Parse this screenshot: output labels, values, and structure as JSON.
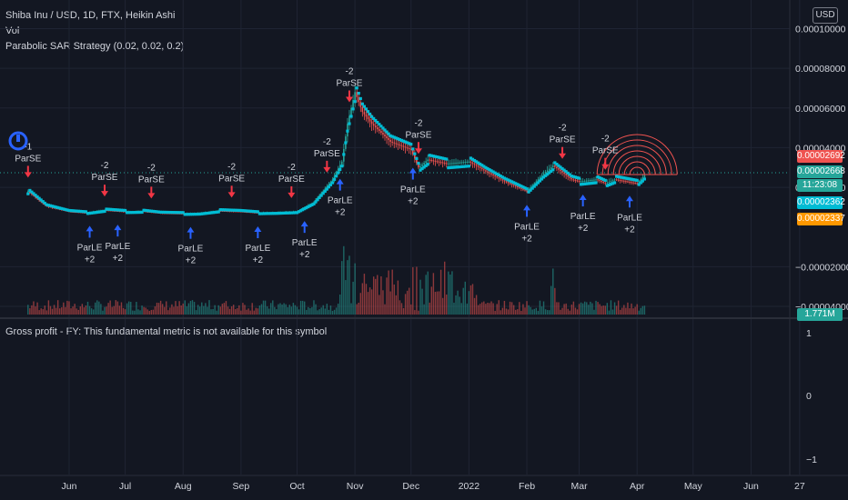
{
  "legend": {
    "symbol": "Shiba Inu / USD, 1D, FTX, Heikin Ashi",
    "volume": "Vol",
    "strategy": "Parabolic SAR Strategy (0.02, 0.02, 0.2)",
    "lower_pane": "Gross profit - FY: This fundamental metric is not available for this symbol"
  },
  "currency_button": "USD",
  "price_tags": {
    "red": "0.00002692",
    "green": "0.00002668",
    "countdown": "11:23:08",
    "teal": "0.00002362",
    "orange": "0.00002337",
    "volume": "1.771M"
  },
  "colors": {
    "background": "#131722",
    "bull": "#26a69a",
    "bear": "#ef5350",
    "sar": "#00bcd4",
    "buy_arrow": "#2962ff",
    "sell_arrow": "#f23645",
    "fib_circles": "#ef5350",
    "tag_orange": "#ff9800"
  },
  "chart_data": [
    {
      "type": "line",
      "pane": "price",
      "series": [
        {
          "name": "Shiba Inu / USD",
          "x": [
            "2021-05-10",
            "2021-05-20",
            "2021-06-01",
            "2021-06-10",
            "2021-06-20",
            "2021-07-01",
            "2021-07-10",
            "2021-07-20",
            "2021-08-01",
            "2021-08-10",
            "2021-08-20",
            "2021-09-01",
            "2021-09-10",
            "2021-09-20",
            "2021-10-01",
            "2021-10-10",
            "2021-10-20",
            "2021-10-25",
            "2021-10-28",
            "2021-11-01",
            "2021-11-05",
            "2021-11-10",
            "2021-11-20",
            "2021-12-01",
            "2021-12-05",
            "2021-12-10",
            "2021-12-20",
            "2022-01-01",
            "2022-01-10",
            "2022-01-20",
            "2022-02-01",
            "2022-02-10",
            "2022-02-15",
            "2022-02-25",
            "2022-03-01",
            "2022-03-10",
            "2022-03-15",
            "2022-03-20",
            "2022-04-01",
            "2022-04-05"
          ],
          "values": [
            1.8e-05,
            1.05e-05,
            7.8e-06,
            7.2e-06,
            8.5e-06,
            7.8e-06,
            8e-06,
            7e-06,
            6.8e-06,
            7e-06,
            8.2e-06,
            7.8e-06,
            7.2e-06,
            7.4e-06,
            7.8e-06,
            1.25e-05,
            2.4e-05,
            3.3e-05,
            5.2e-05,
            6.8e-05,
            5.8e-05,
            5.2e-05,
            4.3e-05,
            3.9e-05,
            3e-05,
            3.4e-05,
            3.2e-05,
            3.3e-05,
            2.8e-05,
            2.3e-05,
            1.8e-05,
            2.7e-05,
            3.1e-05,
            2.4e-05,
            2.3e-05,
            2.4e-05,
            2.2e-05,
            2.4e-05,
            2.2e-05,
            2.6e-05
          ]
        }
      ],
      "signals": [
        {
          "label": "ParSE",
          "count": "-1",
          "side": "sell",
          "x": "2021-05-10"
        },
        {
          "label": "ParLE",
          "count": "+2",
          "side": "buy",
          "x": "2021-06-12"
        },
        {
          "label": "ParSE",
          "count": "-2",
          "side": "sell",
          "x": "2021-06-20"
        },
        {
          "label": "ParLE",
          "count": "+2",
          "side": "buy",
          "x": "2021-06-27"
        },
        {
          "label": "ParSE",
          "count": "-2",
          "side": "sell",
          "x": "2021-07-15"
        },
        {
          "label": "ParLE",
          "count": "+2",
          "side": "buy",
          "x": "2021-08-05"
        },
        {
          "label": "ParSE",
          "count": "-2",
          "side": "sell",
          "x": "2021-08-27"
        },
        {
          "label": "ParLE",
          "count": "+2",
          "side": "buy",
          "x": "2021-09-10"
        },
        {
          "label": "ParSE",
          "count": "-2",
          "side": "sell",
          "x": "2021-09-28"
        },
        {
          "label": "ParLE",
          "count": "+2",
          "side": "buy",
          "x": "2021-10-05"
        },
        {
          "label": "ParSE",
          "count": "-2",
          "side": "sell",
          "x": "2021-10-17"
        },
        {
          "label": "ParLE",
          "count": "+2",
          "side": "buy",
          "x": "2021-10-24"
        },
        {
          "label": "ParSE",
          "count": "-2",
          "side": "sell",
          "x": "2021-10-29"
        },
        {
          "label": "ParSE",
          "count": "-2",
          "side": "sell",
          "x": "2021-12-05"
        },
        {
          "label": "ParLE",
          "count": "+2",
          "side": "buy",
          "x": "2021-12-02"
        },
        {
          "label": "ParLE",
          "count": "+2",
          "side": "buy",
          "x": "2022-02-01"
        },
        {
          "label": "ParSE",
          "count": "-2",
          "side": "sell",
          "x": "2022-02-20"
        },
        {
          "label": "ParLE",
          "count": "+2",
          "side": "buy",
          "x": "2022-03-03"
        },
        {
          "label": "ParSE",
          "count": "-2",
          "side": "sell",
          "x": "2022-03-15"
        },
        {
          "label": "ParLE",
          "count": "+2",
          "side": "buy",
          "x": "2022-03-28"
        }
      ],
      "y_ticks": [
        "0.00010000",
        "0.00008000",
        "0.00006000",
        "0.00004000",
        "0.00002000",
        "−0.00002000",
        "−0.00004000"
      ],
      "x_ticks": [
        "Jun",
        "Jul",
        "Aug",
        "Sep",
        "Oct",
        "Nov",
        "Dec",
        "2022",
        "Feb",
        "Mar",
        "Apr",
        "May",
        "Jun",
        "27"
      ],
      "ylim": [
        -4e-05,
        0.0001
      ]
    },
    {
      "type": "line",
      "pane": "lower",
      "y_ticks": [
        "1",
        "0",
        "−1"
      ],
      "ylim": [
        -1,
        1
      ]
    }
  ]
}
